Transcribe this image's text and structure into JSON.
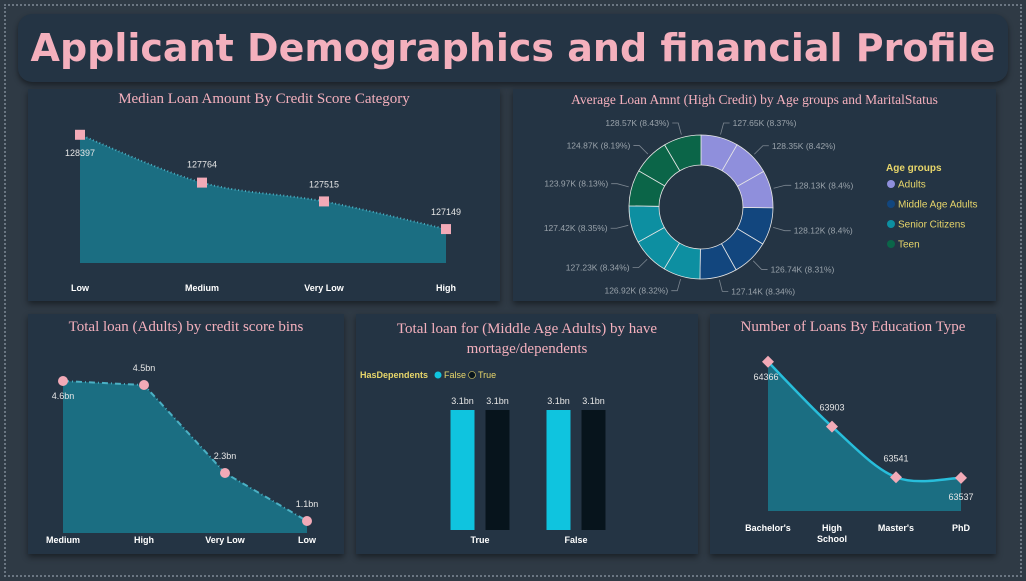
{
  "page": {
    "title": "Applicant Demographics and financial Profile"
  },
  "colors": {
    "panel": "#243444",
    "area": "#1b6e82",
    "line_c1": "#4ab0c4",
    "line_c4": "#28bedb",
    "marker": "#f2aab7",
    "bar_false": "#0fc4df",
    "bar_true": "#07141c",
    "title": "#f4b0bd",
    "legend_text": "#e8d66a"
  },
  "chart_data": [
    {
      "id": "c1",
      "type": "area",
      "title": "Median Loan Amount By Credit Score Category",
      "categories": [
        "Low",
        "Medium",
        "Very Low",
        "High"
      ],
      "values": [
        128397,
        127764,
        127515,
        127149
      ],
      "labels": [
        "128397",
        "127764",
        "127515",
        "127149"
      ],
      "ylim": [
        126700,
        128500
      ],
      "xlabel": "",
      "ylabel": ""
    },
    {
      "id": "c2",
      "type": "pie",
      "title": "Average Loan Amnt (High Credit) by Age groups and MaritalStatus",
      "legend_title": "Age groups",
      "legend": [
        {
          "name": "Adults",
          "color": "#8f8fdc"
        },
        {
          "name": "Middle Age Adults",
          "color": "#12467e"
        },
        {
          "name": "Senior Citizens",
          "color": "#0d8fa1"
        },
        {
          "name": "Teen",
          "color": "#0b6548"
        }
      ],
      "slices": [
        {
          "group": "Adults",
          "value": 127.65,
          "label": "127.65K (8.37%)"
        },
        {
          "group": "Adults",
          "value": 128.35,
          "label": "128.35K (8.42%)"
        },
        {
          "group": "Adults",
          "value": 128.13,
          "label": "128.13K (8.4%)"
        },
        {
          "group": "Middle Age Adults",
          "value": 128.12,
          "label": "128.12K (8.4%)"
        },
        {
          "group": "Middle Age Adults",
          "value": 126.74,
          "label": "126.74K (8.31%)"
        },
        {
          "group": "Middle Age Adults",
          "value": 127.14,
          "label": "127.14K (8.34%)"
        },
        {
          "group": "Senior Citizens",
          "value": 126.92,
          "label": "126.92K (8.32%)"
        },
        {
          "group": "Senior Citizens",
          "value": 127.23,
          "label": "127.23K (8.34%)"
        },
        {
          "group": "Senior Citizens",
          "value": 127.42,
          "label": "127.42K (8.35%)"
        },
        {
          "group": "Teen",
          "value": 123.97,
          "label": "123.97K (8.13%)"
        },
        {
          "group": "Teen",
          "value": 124.87,
          "label": "124.87K (8.19%)"
        },
        {
          "group": "Teen",
          "value": 128.57,
          "label": "128.57K (8.43%)"
        }
      ]
    },
    {
      "id": "c3",
      "type": "area",
      "title": "Total loan (Adults) by credit score bins",
      "categories": [
        "Medium",
        "High",
        "Very Low",
        "Low"
      ],
      "values": [
        4.6,
        4.5,
        2.3,
        1.1
      ],
      "labels": [
        "4.6bn",
        "4.5bn",
        "2.3bn",
        "1.1bn"
      ],
      "ylim": [
        0.8,
        4.9
      ],
      "xlabel": "",
      "ylabel": ""
    },
    {
      "id": "c4",
      "type": "bar",
      "title": "Total loan for (Middle Age Adults) by have mortage/dependents",
      "legend_title": "HasDependents",
      "legend": [
        "False",
        "True"
      ],
      "categories": [
        "True",
        "False"
      ],
      "series": [
        {
          "name": "False",
          "values": [
            3.1,
            3.1
          ],
          "labels": [
            "3.1bn",
            "3.1bn"
          ]
        },
        {
          "name": "True",
          "values": [
            3.1,
            3.1
          ],
          "labels": [
            "3.1bn",
            "3.1bn"
          ]
        }
      ],
      "ylim": [
        0,
        3.1
      ]
    },
    {
      "id": "c5",
      "type": "area",
      "title": "Number of Loans By Education Type",
      "categories": [
        "Bachelor's",
        "High School",
        "Master's",
        "PhD"
      ],
      "values": [
        64366,
        63903,
        63541,
        63537
      ],
      "labels": [
        "64366",
        "63903",
        "63541",
        "63537"
      ],
      "ylim": [
        63300,
        64400
      ],
      "xlabel": "",
      "ylabel": ""
    }
  ]
}
